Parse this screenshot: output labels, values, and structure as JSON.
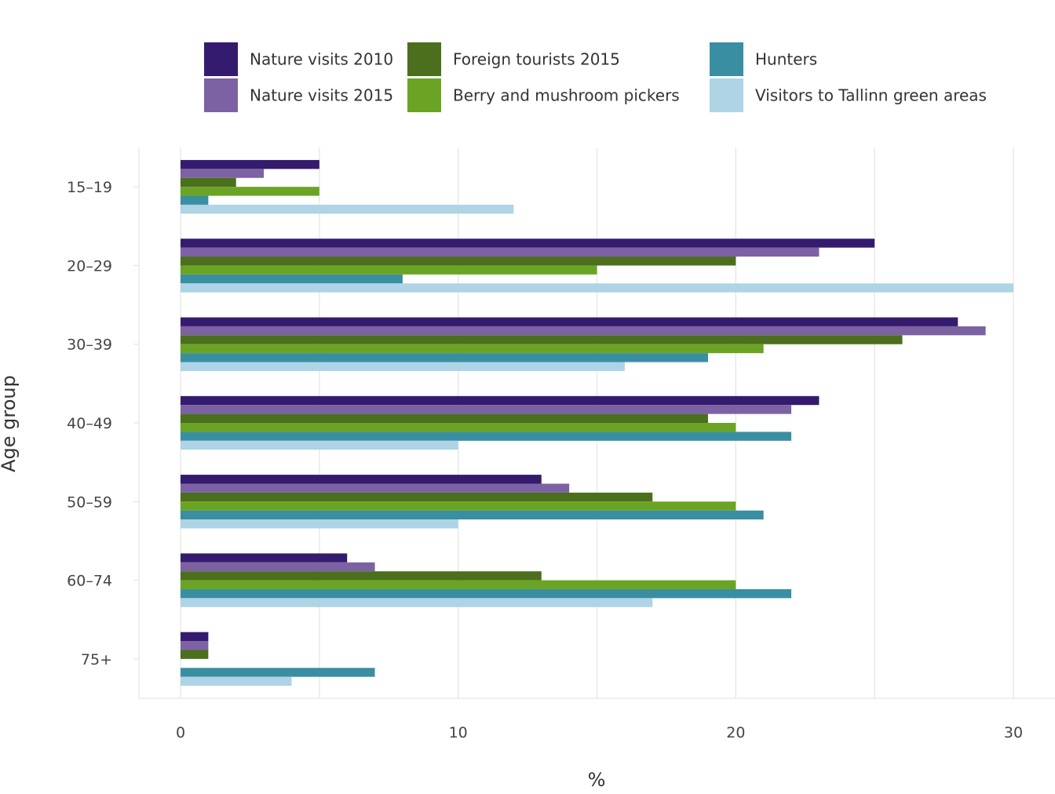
{
  "chart_data": {
    "type": "bar",
    "orientation": "horizontal",
    "xlabel": "%",
    "ylabel": "Age group",
    "xlim": [
      0,
      30
    ],
    "x_ticks": [
      "0",
      "10",
      "20",
      "30"
    ],
    "categories": [
      "15–19",
      "20–29",
      "30–39",
      "40–49",
      "50–59",
      "60–74",
      "75+"
    ],
    "grid": true,
    "legend_position": "top",
    "series": [
      {
        "name": "Nature visits 2010",
        "color": "#341b6e",
        "values": [
          5,
          25,
          28,
          23,
          13,
          6,
          1
        ]
      },
      {
        "name": "Nature visits 2015",
        "color": "#7c62a2",
        "values": [
          3,
          23,
          29,
          22,
          14,
          7,
          1
        ]
      },
      {
        "name": "Foreign tourists 2015",
        "color": "#4b6f1c",
        "values": [
          2,
          20,
          26,
          19,
          17,
          13,
          1
        ]
      },
      {
        "name": "Berry and mushroom pickers",
        "color": "#6ba424",
        "values": [
          5,
          15,
          21,
          20,
          20,
          20,
          0
        ]
      },
      {
        "name": "Hunters",
        "color": "#398fa1",
        "values": [
          1,
          8,
          19,
          22,
          21,
          22,
          7
        ]
      },
      {
        "name": "Visitors to Tallinn green areas",
        "color": "#aed4e5",
        "values": [
          12,
          30,
          16,
          10,
          10,
          17,
          4
        ]
      }
    ]
  }
}
